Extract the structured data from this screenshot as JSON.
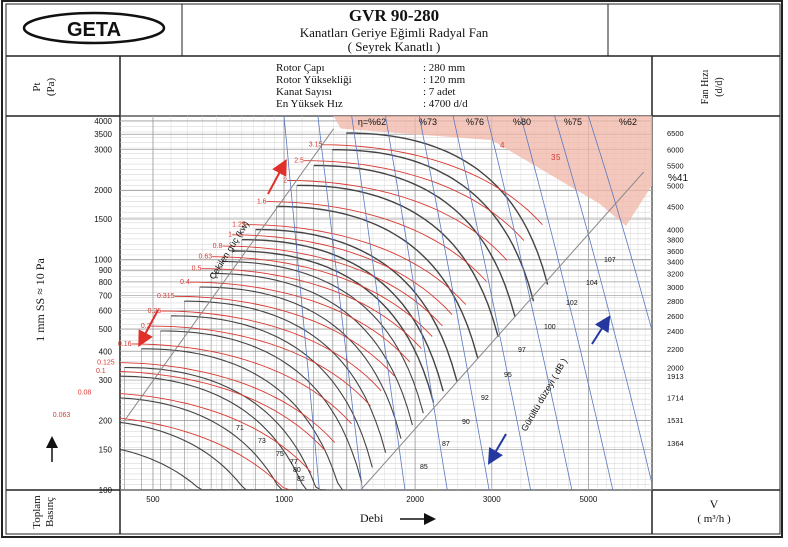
{
  "header": {
    "logo": "GETA",
    "model": "GVR 90-280",
    "subtitle": "Kanatları Geriye Eğimli Radyal Fan",
    "subtitle2": "( Seyrek Kanatlı )"
  },
  "specs": [
    {
      "label": "Rotor Çapı",
      "value": ":  280 mm"
    },
    {
      "label": "Rotor Yüksekliği",
      "value": ":  120 mm"
    },
    {
      "label": "Kanat Sayısı",
      "value": ":      7 adet"
    },
    {
      "label": "En Yüksek Hız",
      "value": ": 4700 d/d"
    }
  ],
  "left_header": {
    "line1": "Pt",
    "line2": "(Pa)"
  },
  "right_header": {
    "line1": "Fan Hızı",
    "line2": "(d/d)"
  },
  "y_axis_side_label": "1 mm SS ≈ 10 Pa",
  "y_axis_bottom_label": {
    "line1": "Toplam",
    "line2": "Basınç"
  },
  "x_axis": {
    "title": "Debi",
    "unit_line1": "V",
    "unit_line2": "( m³/h )"
  },
  "colors": {
    "black_curve": "#444444",
    "red_curve": "#d83a32",
    "blue_curve": "#5a78c0",
    "shade": "#f2b6a8",
    "arrow_red": "#e0302a",
    "arrow_blue": "#2438a0"
  },
  "chart_data": {
    "type": "line",
    "x_scale": "log",
    "y_scale": "log",
    "xlim": [
      420,
      7000
    ],
    "ylim": [
      100,
      4200
    ],
    "x_ticks": [
      500,
      1000,
      2000,
      3000,
      5000
    ],
    "y_ticks": [
      100,
      150,
      200,
      300,
      400,
      500,
      600,
      700,
      800,
      900,
      1000,
      1500,
      2000,
      3000,
      3500,
      4000
    ],
    "efficiency_labels": [
      "η=%62",
      "%73",
      "%76",
      "%80",
      "%75",
      "%62"
    ],
    "efficiency_41": "%41",
    "power_axis_title": "Çekilen güç (kw)",
    "power_labels": [
      "3.15",
      "2.5",
      "2",
      "1.6",
      "1.25",
      "1",
      "0.8",
      "0.63",
      "0.5",
      "0.4",
      "0.315",
      "0.25",
      "0.2",
      "0.16",
      "0.125",
      "0.1",
      "0.08",
      "0.063"
    ],
    "power_curve_labels": [
      "4",
      "5",
      "3"
    ],
    "noise_axis_title": "Gürültü düzeyi ( dB )",
    "noise_labels": [
      "71",
      "73",
      "75",
      "77",
      "80",
      "82",
      "85",
      "87",
      "90",
      "92",
      "95",
      "97",
      "100",
      "102",
      "104",
      "107"
    ],
    "speed_labels": [
      "6500",
      "6000",
      "5500",
      "5000",
      "4500",
      "4000",
      "3800",
      "3600",
      "3400",
      "3200",
      "3000",
      "2800",
      "2600",
      "2400",
      "2200",
      "2000",
      "1913",
      "1714",
      "1531",
      "1364"
    ],
    "speed_values": [
      6500,
      6000,
      5500,
      5000,
      4500,
      4000,
      3800,
      3600,
      3400,
      3200,
      3000,
      2800,
      2600,
      2400,
      2200,
      2000,
      1913,
      1714,
      1531,
      1364
    ],
    "speed_pressure_pa": [
      3540,
      3000,
      2560,
      2100,
      1700,
      1350,
      1220,
      1090,
      980,
      870,
      760,
      660,
      570,
      490,
      410,
      340,
      312,
      252,
      201,
      160
    ],
    "speed_flow_start_m3h": [
      1390,
      1290,
      1170,
      1070,
      960,
      860,
      800,
      760,
      720,
      680,
      640,
      590,
      550,
      520,
      470,
      430,
      410,
      380,
      340,
      300
    ]
  }
}
